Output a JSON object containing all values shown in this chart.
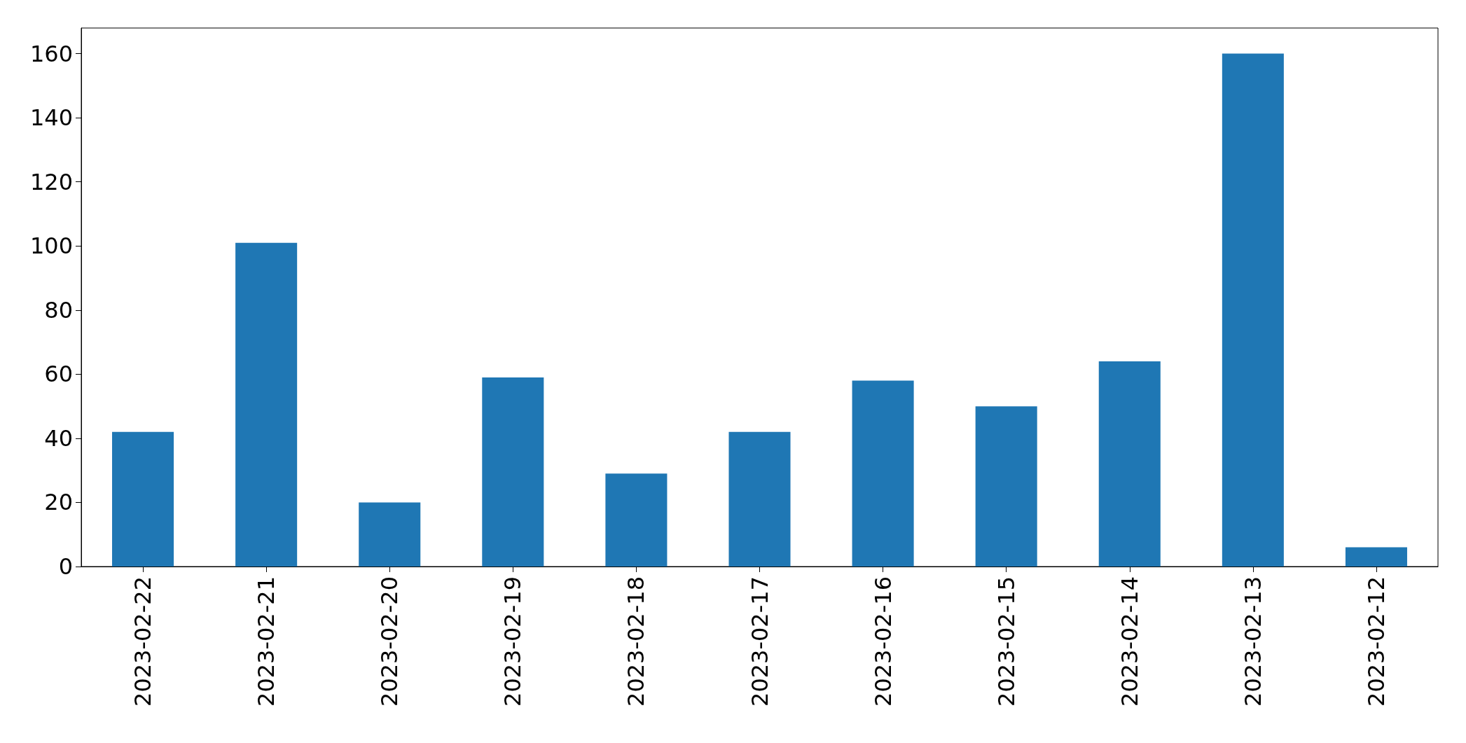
{
  "chart_data": {
    "type": "bar",
    "categories": [
      "2023-02-22",
      "2023-02-21",
      "2023-02-20",
      "2023-02-19",
      "2023-02-18",
      "2023-02-17",
      "2023-02-16",
      "2023-02-15",
      "2023-02-14",
      "2023-02-13",
      "2023-02-12"
    ],
    "values": [
      42,
      101,
      20,
      59,
      29,
      42,
      58,
      50,
      64,
      160,
      6
    ],
    "color": "#1f77b4",
    "ylim": [
      0,
      168
    ],
    "yticks": [
      0,
      20,
      40,
      60,
      80,
      100,
      120,
      140,
      160
    ],
    "grid": false
  }
}
